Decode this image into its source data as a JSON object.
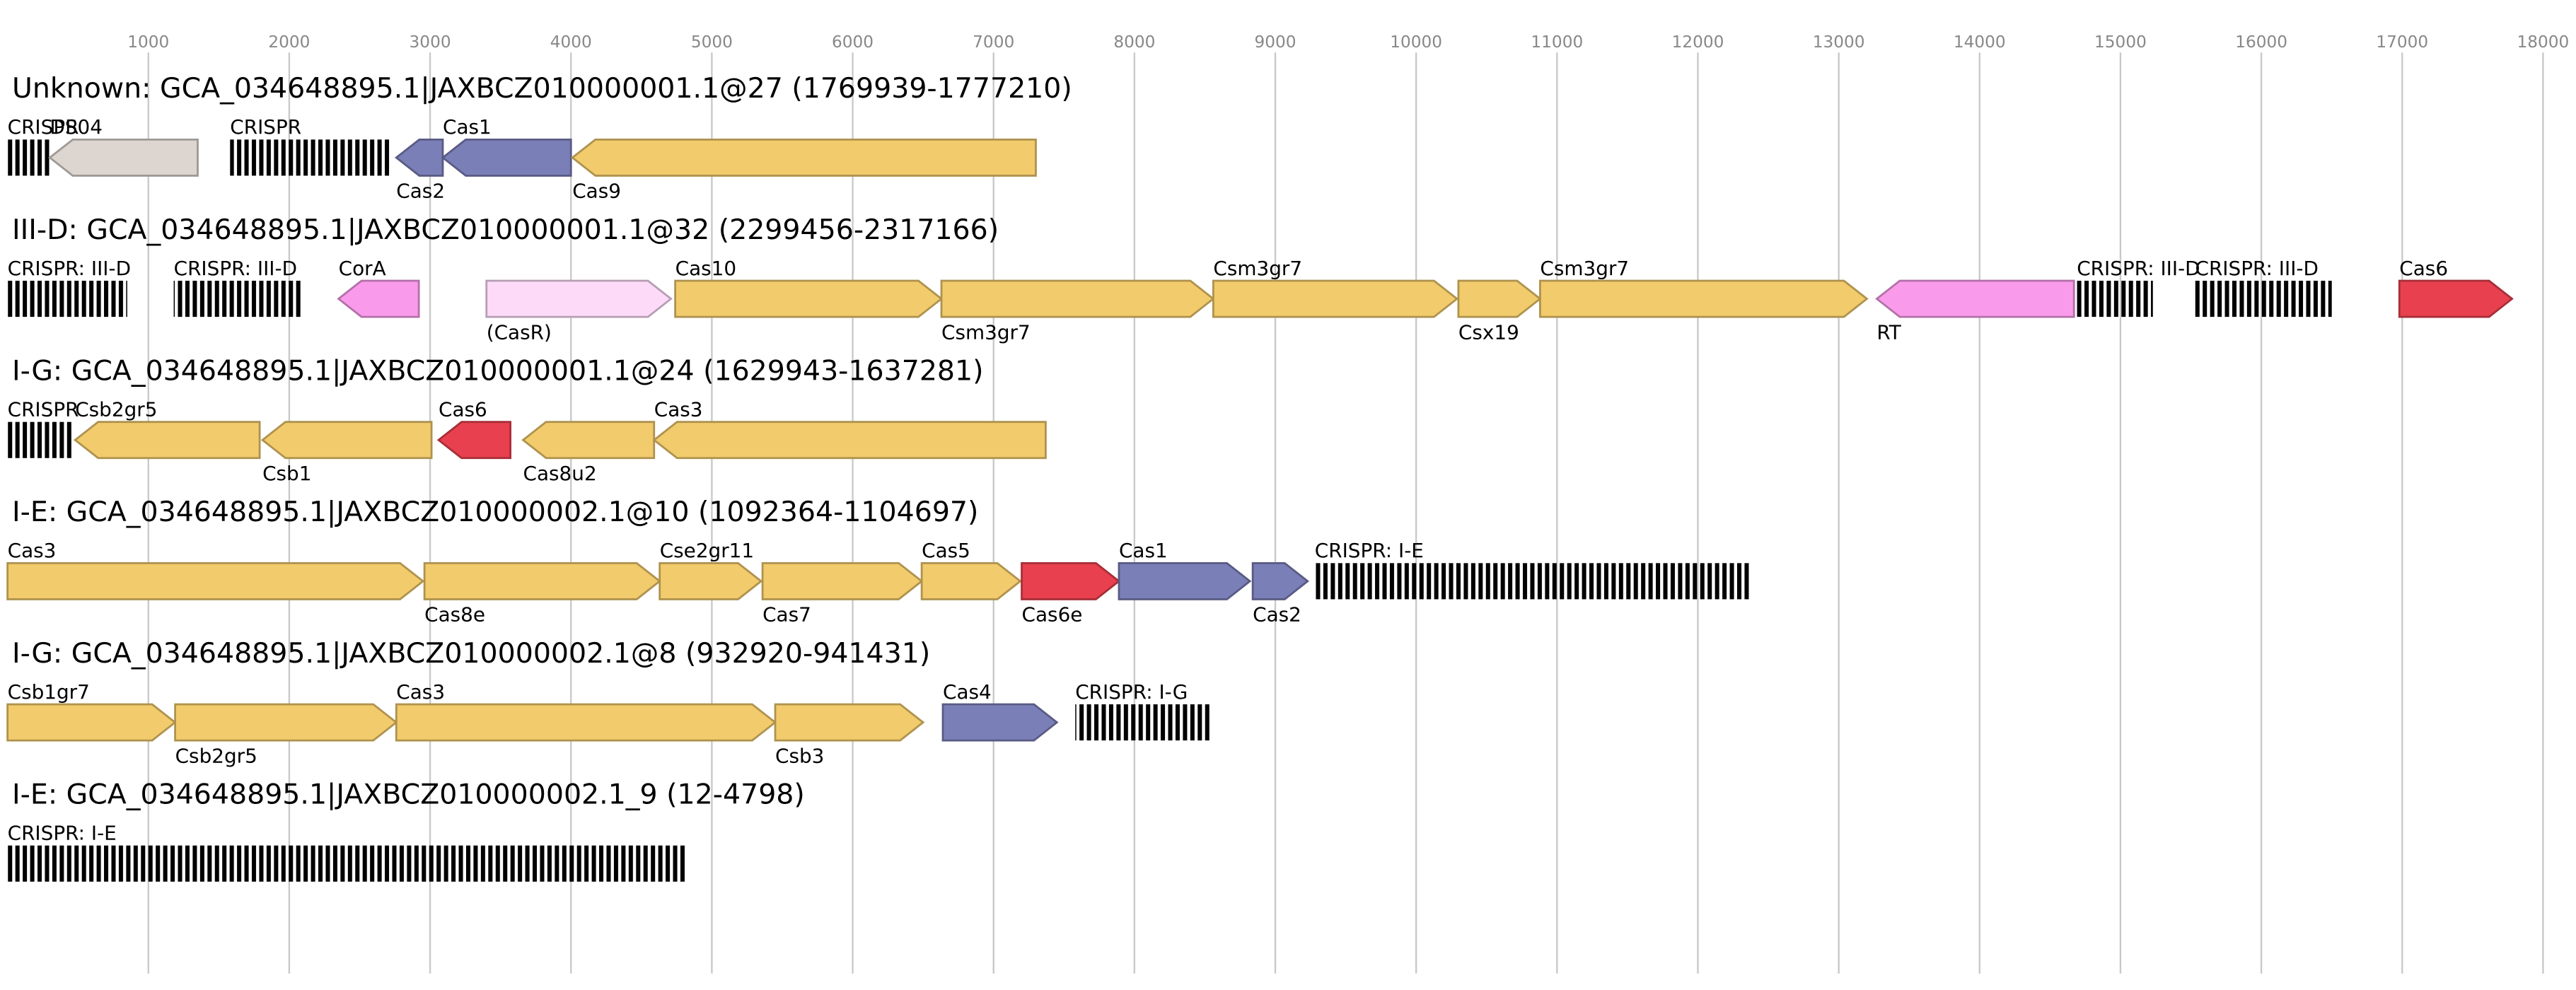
{
  "chart_data": {
    "type": "gene-map",
    "xlim": [
      0,
      18230
    ],
    "xticks": [
      1000,
      2000,
      3000,
      4000,
      5000,
      6000,
      7000,
      8000,
      9000,
      10000,
      11000,
      12000,
      13000,
      14000,
      15000,
      16000,
      17000,
      18000
    ],
    "grid": true,
    "tracks": [
      {
        "title": "Unknown: GCA_034648895.1|JAXBCZ010000001.1@27 (1769939-1777210)",
        "genes": [
          {
            "label": "CRISPR",
            "start": 0,
            "end": 300,
            "shape": "repeats",
            "color": "#000000"
          },
          {
            "label": "DS04",
            "start": 300,
            "end": 1350,
            "shape": "arrow",
            "strand": -1,
            "color": "#ddd5cf"
          },
          {
            "label": "CRISPR",
            "start": 1580,
            "end": 2710,
            "shape": "repeats",
            "color": "#000000"
          },
          {
            "label": "Cas2",
            "start": 2760,
            "end": 3090,
            "shape": "arrow",
            "strand": -1,
            "color": "#7b7fb8"
          },
          {
            "label": "Cas1",
            "start": 3090,
            "end": 4000,
            "shape": "arrow",
            "strand": -1,
            "color": "#7b7fb8"
          },
          {
            "label": "Cas9",
            "start": 4010,
            "end": 7300,
            "shape": "arrow",
            "strand": -1,
            "color": "#f2cb6c"
          }
        ]
      },
      {
        "title": "III-D: GCA_034648895.1|JAXBCZ010000001.1@32 (2299456-2317166)",
        "genes": [
          {
            "label": "CRISPR: III-D",
            "start": 0,
            "end": 850,
            "shape": "repeats",
            "color": "#000000"
          },
          {
            "label": "CRISPR: III-D",
            "start": 1180,
            "end": 2100,
            "shape": "repeats",
            "color": "#000000"
          },
          {
            "label": "CorA",
            "start": 2350,
            "end": 2920,
            "shape": "arrow",
            "strand": -1,
            "color": "#f99bea"
          },
          {
            "label": "(CasR)",
            "start": 3400,
            "end": 4710,
            "shape": "arrow",
            "strand": 1,
            "color": "#fddbf8"
          },
          {
            "label": "Cas10",
            "start": 4740,
            "end": 6630,
            "shape": "arrow",
            "strand": 1,
            "color": "#f2cb6c"
          },
          {
            "label": "Csm3gr7",
            "start": 6630,
            "end": 8560,
            "shape": "arrow",
            "strand": 1,
            "color": "#f2cb6c"
          },
          {
            "label": "Csm3gr7",
            "start": 8560,
            "end": 10290,
            "shape": "arrow",
            "strand": 1,
            "color": "#f2cb6c"
          },
          {
            "label": "Csx19",
            "start": 10300,
            "end": 10880,
            "shape": "arrow",
            "strand": 1,
            "color": "#f2cb6c"
          },
          {
            "label": "Csm3gr7",
            "start": 10880,
            "end": 13200,
            "shape": "arrow",
            "strand": 1,
            "color": "#f2cb6c"
          },
          {
            "label": "RT",
            "start": 13270,
            "end": 14670,
            "shape": "arrow",
            "strand": -1,
            "color": "#f99bea"
          },
          {
            "label": "CRISPR: III-D",
            "start": 14690,
            "end": 15230,
            "shape": "repeats",
            "color": "#000000"
          },
          {
            "label": "CRISPR: III-D",
            "start": 15530,
            "end": 16500,
            "shape": "repeats",
            "color": "#000000"
          },
          {
            "label": "Cas6",
            "start": 16980,
            "end": 17780,
            "shape": "arrow",
            "strand": 1,
            "color": "#e8404e"
          }
        ]
      },
      {
        "title": "I-G: GCA_034648895.1|JAXBCZ010000001.1@24 (1629943-1637281)",
        "genes": [
          {
            "label": "CRISPR",
            "start": 0,
            "end": 460,
            "shape": "repeats",
            "color": "#000000"
          },
          {
            "label": "Csb2gr5",
            "start": 480,
            "end": 1790,
            "shape": "arrow",
            "strand": -1,
            "color": "#f2cb6c"
          },
          {
            "label": "Csb1",
            "start": 1810,
            "end": 3010,
            "shape": "arrow",
            "strand": -1,
            "color": "#f2cb6c"
          },
          {
            "label": "Cas6",
            "start": 3060,
            "end": 3570,
            "shape": "arrow",
            "strand": -1,
            "color": "#e8404e"
          },
          {
            "label": "Cas8u2",
            "start": 3660,
            "end": 4590,
            "shape": "arrow",
            "strand": -1,
            "color": "#f2cb6c"
          },
          {
            "label": "Cas3",
            "start": 4590,
            "end": 7370,
            "shape": "arrow",
            "strand": -1,
            "color": "#f2cb6c"
          }
        ]
      },
      {
        "title": "I-E: GCA_034648895.1|JAXBCZ010000002.1@10 (1092364-1104697)",
        "genes": [
          {
            "label": "Cas3",
            "start": 0,
            "end": 2950,
            "shape": "arrow",
            "strand": 1,
            "color": "#f2cb6c"
          },
          {
            "label": "Cas8e",
            "start": 2960,
            "end": 4630,
            "shape": "arrow",
            "strand": 1,
            "color": "#f2cb6c"
          },
          {
            "label": "Cse2gr11",
            "start": 4630,
            "end": 5350,
            "shape": "arrow",
            "strand": 1,
            "color": "#f2cb6c"
          },
          {
            "label": "Cas7",
            "start": 5360,
            "end": 6490,
            "shape": "arrow",
            "strand": 1,
            "color": "#f2cb6c"
          },
          {
            "label": "Cas5",
            "start": 6490,
            "end": 7190,
            "shape": "arrow",
            "strand": 1,
            "color": "#f2cb6c"
          },
          {
            "label": "Cas6e",
            "start": 7200,
            "end": 7890,
            "shape": "arrow",
            "strand": 1,
            "color": "#e8404e"
          },
          {
            "label": "Cas1",
            "start": 7890,
            "end": 8820,
            "shape": "arrow",
            "strand": 1,
            "color": "#7b7fb8"
          },
          {
            "label": "Cas2",
            "start": 8840,
            "end": 9230,
            "shape": "arrow",
            "strand": 1,
            "color": "#7b7fb8"
          },
          {
            "label": "CRISPR: I-E",
            "start": 9280,
            "end": 12380,
            "shape": "repeats",
            "color": "#000000"
          }
        ]
      },
      {
        "title": "I-G: GCA_034648895.1|JAXBCZ010000002.1@8 (932920-941431)",
        "genes": [
          {
            "label": "Csb1gr7",
            "start": 0,
            "end": 1190,
            "shape": "arrow",
            "strand": 1,
            "color": "#f2cb6c"
          },
          {
            "label": "Csb2gr5",
            "start": 1190,
            "end": 2760,
            "shape": "arrow",
            "strand": 1,
            "color": "#f2cb6c"
          },
          {
            "label": "Cas3",
            "start": 2760,
            "end": 5450,
            "shape": "arrow",
            "strand": 1,
            "color": "#f2cb6c"
          },
          {
            "label": "Csb3",
            "start": 5450,
            "end": 6500,
            "shape": "arrow",
            "strand": 1,
            "color": "#f2cb6c"
          },
          {
            "label": "Cas4",
            "start": 6640,
            "end": 7450,
            "shape": "arrow",
            "strand": 1,
            "color": "#7b7fb8"
          },
          {
            "label": "CRISPR: I-G",
            "start": 7580,
            "end": 8540,
            "shape": "repeats",
            "color": "#000000"
          }
        ]
      },
      {
        "title": "I-E: GCA_034648895.1|JAXBCZ010000002.1_9 (12-4798)",
        "genes": [
          {
            "label": "CRISPR: I-E",
            "start": 0,
            "end": 4810,
            "shape": "repeats",
            "color": "#000000"
          }
        ]
      }
    ]
  }
}
